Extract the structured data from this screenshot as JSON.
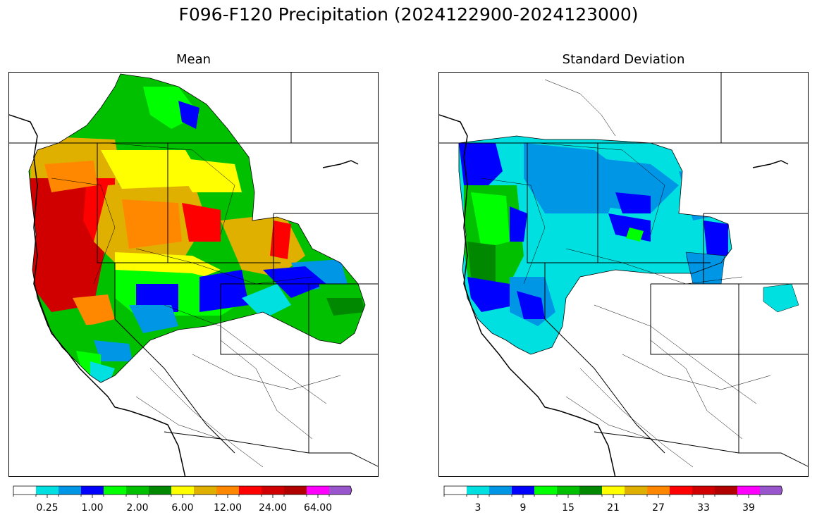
{
  "title": "F096-F120 Precipitation (2024122900-2024123000)",
  "panels": [
    {
      "id": "mean",
      "title": "Mean",
      "colorbar": {
        "colors": [
          "#ffffff",
          "#00e0e0",
          "#0096e6",
          "#0000ff",
          "#00ff00",
          "#00c000",
          "#008800",
          "#ffff00",
          "#e0b000",
          "#ff8800",
          "#ff0000",
          "#d00000",
          "#b00000",
          "#ff00ff",
          "#9955cc"
        ],
        "tick_labels": [
          "0.25",
          "1.00",
          "2.00",
          "6.00",
          "12.00",
          "24.00",
          "64.00"
        ],
        "extend": "max"
      }
    },
    {
      "id": "stddev",
      "title": "Standard Deviation",
      "colorbar": {
        "colors": [
          "#ffffff",
          "#00e0e0",
          "#0096e6",
          "#0000ff",
          "#00ff00",
          "#00c000",
          "#008800",
          "#ffff00",
          "#e0b000",
          "#ff8800",
          "#ff0000",
          "#d00000",
          "#b00000",
          "#ff00ff",
          "#9955cc"
        ],
        "tick_labels": [
          "3",
          "9",
          "15",
          "21",
          "27",
          "33",
          "39"
        ],
        "extend": "max"
      }
    }
  ]
}
